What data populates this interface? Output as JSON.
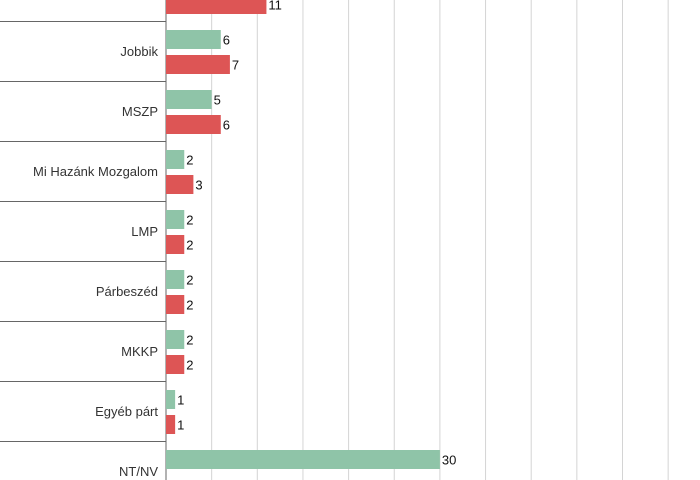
{
  "chart_data": {
    "type": "bar",
    "orientation": "horizontal",
    "categories": [
      "",
      "Jobbik",
      "MSZP",
      "Mi Hazánk Mozgalom",
      "LMP",
      "Párbeszéd",
      "MKKP",
      "Egyéb párt",
      "NT/NV"
    ],
    "series": [
      {
        "color": "#8fc4a8",
        "values": [
          null,
          6,
          5,
          2,
          2,
          2,
          2,
          1,
          30
        ]
      },
      {
        "color": "#dd5555",
        "values": [
          11,
          7,
          6,
          3,
          2,
          2,
          2,
          1,
          null
        ]
      }
    ],
    "xlim": [
      0,
      30
    ],
    "grid": true,
    "title": "",
    "xlabel": "",
    "ylabel": ""
  }
}
